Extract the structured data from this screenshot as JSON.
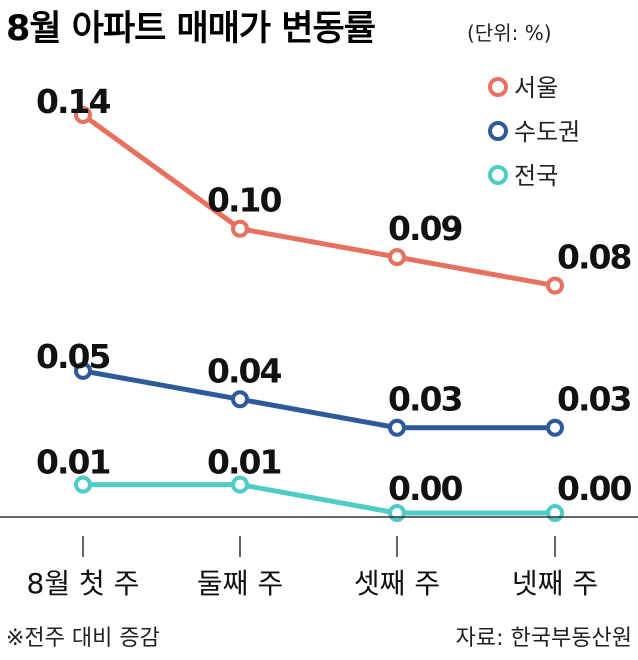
{
  "chart_data": {
    "type": "line",
    "title": "8월 아파트 매매가 변동률",
    "unit_label": "(단위: %)",
    "categories": [
      "8월 첫 주",
      "둘째 주",
      "셋째 주",
      "넷째 주"
    ],
    "series": [
      {
        "name": "서울",
        "values": [
          0.14,
          0.1,
          0.09,
          0.08
        ],
        "labels": [
          "0.14",
          "0.10",
          "0.09",
          "0.08"
        ],
        "color": "#E8705F"
      },
      {
        "name": "수도권",
        "values": [
          0.05,
          0.04,
          0.03,
          0.03
        ],
        "labels": [
          "0.05",
          "0.04",
          "0.03",
          "0.03"
        ],
        "color": "#2F5A9A"
      },
      {
        "name": "전국",
        "values": [
          0.01,
          0.01,
          0.0,
          0.0
        ],
        "labels": [
          "0.01",
          "0.01",
          "0.00",
          "0.00"
        ],
        "color": "#4FCBC8"
      }
    ],
    "ylim": [
      0.0,
      0.14
    ],
    "grid": false,
    "legend_position": "top-right"
  },
  "footer": {
    "note": "※전주 대비 증감",
    "source": "자료: 한국부동산원"
  }
}
